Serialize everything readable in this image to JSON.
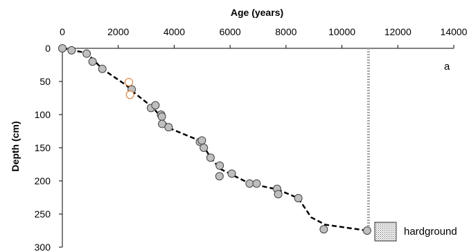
{
  "chart_data": {
    "type": "scatter",
    "title": "",
    "xlabel": "Age (years)",
    "ylabel": "Depth (cm)",
    "x_axis_position": "top",
    "y_axis_reversed": true,
    "xlim": [
      0,
      14000
    ],
    "ylim": [
      0,
      300
    ],
    "x_ticks": [
      0,
      2000,
      4000,
      6000,
      8000,
      10000,
      12000,
      14000
    ],
    "y_ticks": [
      0,
      50,
      100,
      150,
      200,
      250,
      300
    ],
    "panel_label": "a",
    "grid": false,
    "legend_position": "bottom-right",
    "legend": [
      {
        "label": "hardground",
        "symbol": "dotted-square"
      }
    ],
    "colors": {
      "point_fill": "#bfbfbf",
      "point_stroke": "#404040",
      "outlier_stroke": "#e07020",
      "model_line": "#000000",
      "hardground_line": "#a6a6a6"
    },
    "series": [
      {
        "type": "scatter",
        "points": [
          {
            "x": 0,
            "y": 0
          },
          {
            "x": 330,
            "y": 3
          },
          {
            "x": 870,
            "y": 8
          },
          {
            "x": 1080,
            "y": 20
          },
          {
            "x": 1430,
            "y": 31
          },
          {
            "x": 2480,
            "y": 62
          },
          {
            "x": 3170,
            "y": 90
          },
          {
            "x": 3330,
            "y": 86
          },
          {
            "x": 3530,
            "y": 100
          },
          {
            "x": 3560,
            "y": 103
          },
          {
            "x": 3570,
            "y": 114
          },
          {
            "x": 3800,
            "y": 119
          },
          {
            "x": 4920,
            "y": 141
          },
          {
            "x": 4990,
            "y": 139
          },
          {
            "x": 5060,
            "y": 150
          },
          {
            "x": 5300,
            "y": 165
          },
          {
            "x": 5630,
            "y": 177
          },
          {
            "x": 5620,
            "y": 193
          },
          {
            "x": 6060,
            "y": 189
          },
          {
            "x": 6700,
            "y": 204
          },
          {
            "x": 6950,
            "y": 204
          },
          {
            "x": 7680,
            "y": 212
          },
          {
            "x": 7720,
            "y": 220
          },
          {
            "x": 8440,
            "y": 226
          },
          {
            "x": 9350,
            "y": 273
          },
          {
            "x": 10900,
            "y": 275
          }
        ]
      },
      {
        "type": "scatter",
        "style": "outlier",
        "points": [
          {
            "x": 2380,
            "y": 51
          },
          {
            "x": 2420,
            "y": 70
          }
        ]
      },
      {
        "type": "line",
        "style": "dashed",
        "points": [
          {
            "x": 0,
            "y": 0
          },
          {
            "x": 870,
            "y": 7
          },
          {
            "x": 1430,
            "y": 31
          },
          {
            "x": 2300,
            "y": 56
          },
          {
            "x": 2480,
            "y": 64
          },
          {
            "x": 3200,
            "y": 88
          },
          {
            "x": 3550,
            "y": 104
          },
          {
            "x": 3800,
            "y": 120
          },
          {
            "x": 4950,
            "y": 140
          },
          {
            "x": 5300,
            "y": 165
          },
          {
            "x": 5650,
            "y": 182
          },
          {
            "x": 6700,
            "y": 204
          },
          {
            "x": 7700,
            "y": 213
          },
          {
            "x": 8440,
            "y": 226
          },
          {
            "x": 8900,
            "y": 255
          },
          {
            "x": 9400,
            "y": 266
          },
          {
            "x": 10900,
            "y": 275
          }
        ]
      },
      {
        "type": "line",
        "style": "dotted",
        "points": [
          {
            "x": 10950,
            "y": 0
          },
          {
            "x": 10950,
            "y": 275
          }
        ]
      }
    ]
  }
}
